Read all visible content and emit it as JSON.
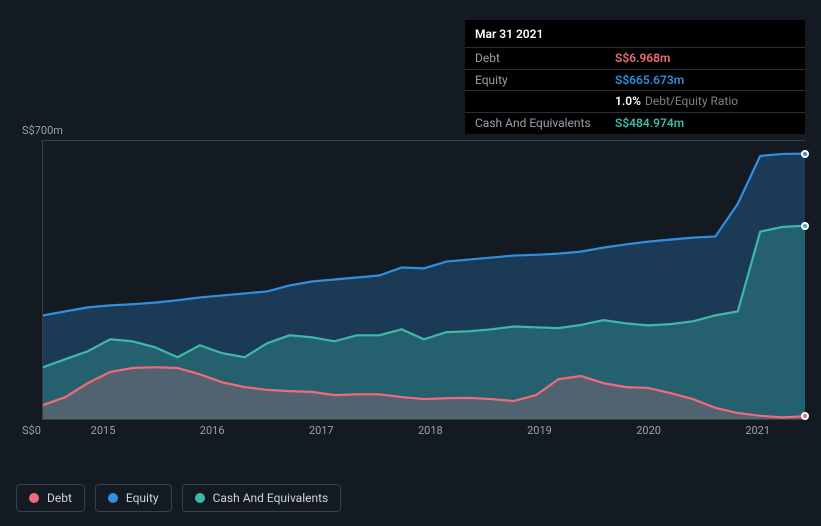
{
  "chart": {
    "type": "area",
    "background_color": "#141a22",
    "grid_color": "#3a3f48",
    "axis_text_color": "#9aa0aa",
    "axis_font_size": 11,
    "y_max_label": "S$700m",
    "y_min_label": "S$0",
    "ylim": [
      0,
      700
    ],
    "x_labels": [
      "2015",
      "2016",
      "2017",
      "2018",
      "2019",
      "2020",
      "2021"
    ],
    "x_ticks_pct": [
      8,
      22.3,
      36.6,
      50.9,
      65.2,
      79.5,
      93.8
    ],
    "series": {
      "debt": {
        "label": "Debt",
        "stroke": "#f06b7a",
        "fill": "rgba(240,107,122,0.22)",
        "values": [
          35,
          55,
          90,
          118,
          128,
          130,
          128,
          112,
          92,
          80,
          73,
          70,
          68,
          60,
          62,
          62,
          55,
          50,
          52,
          53,
          50,
          45,
          60,
          100,
          108,
          90,
          80,
          78,
          65,
          50,
          28,
          15,
          8,
          4,
          6.968
        ]
      },
      "equity": {
        "label": "Equity",
        "stroke": "#2f8fe0",
        "fill": "rgba(47,143,224,0.28)",
        "values": [
          260,
          270,
          280,
          285,
          288,
          292,
          298,
          305,
          310,
          315,
          320,
          335,
          345,
          350,
          355,
          360,
          380,
          378,
          395,
          400,
          405,
          410,
          412,
          415,
          420,
          430,
          438,
          445,
          450,
          455,
          458,
          540,
          660,
          665,
          665.673
        ]
      },
      "cash": {
        "label": "Cash And Equivalents",
        "stroke": "#3fb8a8",
        "fill": "rgba(63,184,168,0.30)",
        "values": [
          130,
          150,
          170,
          200,
          195,
          180,
          155,
          185,
          165,
          155,
          190,
          210,
          205,
          195,
          210,
          210,
          225,
          200,
          218,
          220,
          225,
          232,
          230,
          228,
          236,
          248,
          240,
          235,
          238,
          245,
          260,
          270,
          470,
          482,
          484.974
        ]
      }
    },
    "hover_date": "Mar 31 2021",
    "hover_index": 34,
    "legend": [
      {
        "key": "debt",
        "label": "Debt"
      },
      {
        "key": "equity",
        "label": "Equity"
      },
      {
        "key": "cash",
        "label": "Cash And Equivalents"
      }
    ]
  },
  "tooltip": {
    "date": "Mar 31 2021",
    "rows": [
      {
        "label": "Debt",
        "value": "S$6.968m",
        "color": "#f06b7a"
      },
      {
        "label": "Equity",
        "value": "S$665.673m",
        "color": "#2f8fe0"
      },
      {
        "label": "",
        "value": "1.0%",
        "sub": "Debt/Equity Ratio",
        "color": "#ffffff"
      },
      {
        "label": "Cash And Equivalents",
        "value": "S$484.974m",
        "color": "#3fb8a8"
      }
    ]
  }
}
